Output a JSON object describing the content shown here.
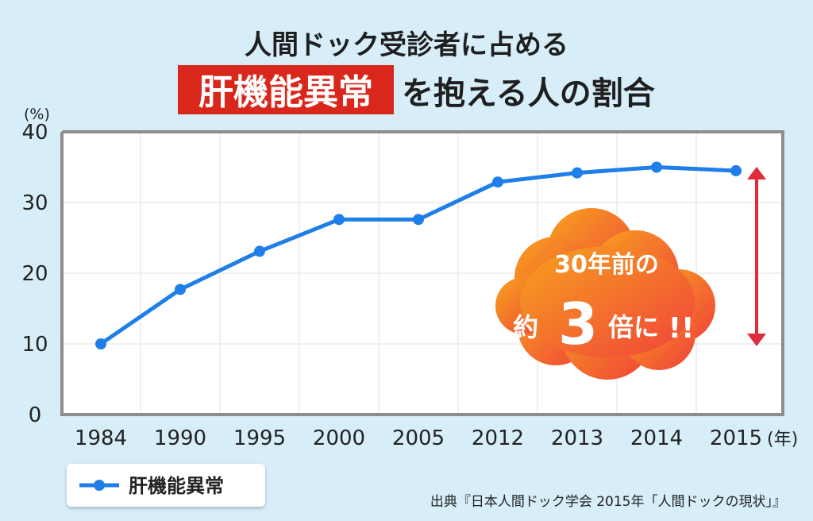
{
  "title": {
    "line1": "人間ドック受診者に占める",
    "highlight": "肝機能異常",
    "line2_rest": "を抱える人の割合"
  },
  "colors": {
    "series": "#1f7fe8",
    "highlight_bg": "#d9271c",
    "arrow": "#e02b3b",
    "callout_from": "#f7a21e",
    "callout_to": "#f0433a",
    "background": "#d7eef9"
  },
  "chart_data": {
    "type": "line",
    "categories": [
      "1984",
      "1990",
      "1995",
      "2000",
      "2005",
      "2012",
      "2013",
      "2014",
      "2015"
    ],
    "series": [
      {
        "name": "肝機能異常",
        "values": [
          10.0,
          17.7,
          23.1,
          27.6,
          27.6,
          32.9,
          34.2,
          35.0,
          34.5
        ]
      }
    ],
    "y_ticks": [
      "0",
      "10",
      "20",
      "30",
      "40"
    ],
    "ylim": [
      0,
      40
    ],
    "y_unit": "(%)",
    "x_unit": "(年)",
    "grid": true,
    "legend_position": "bottom-left",
    "callout": {
      "line1": "30年前の",
      "prefix": "約",
      "number": "3",
      "suffix": "倍に",
      "exclaim": "!!"
    }
  },
  "legend": {
    "icon": "line-dot-icon",
    "label": "肝機能異常"
  },
  "source": "出典『日本人間ドック学会 2015年「人間ドックの現状」』"
}
